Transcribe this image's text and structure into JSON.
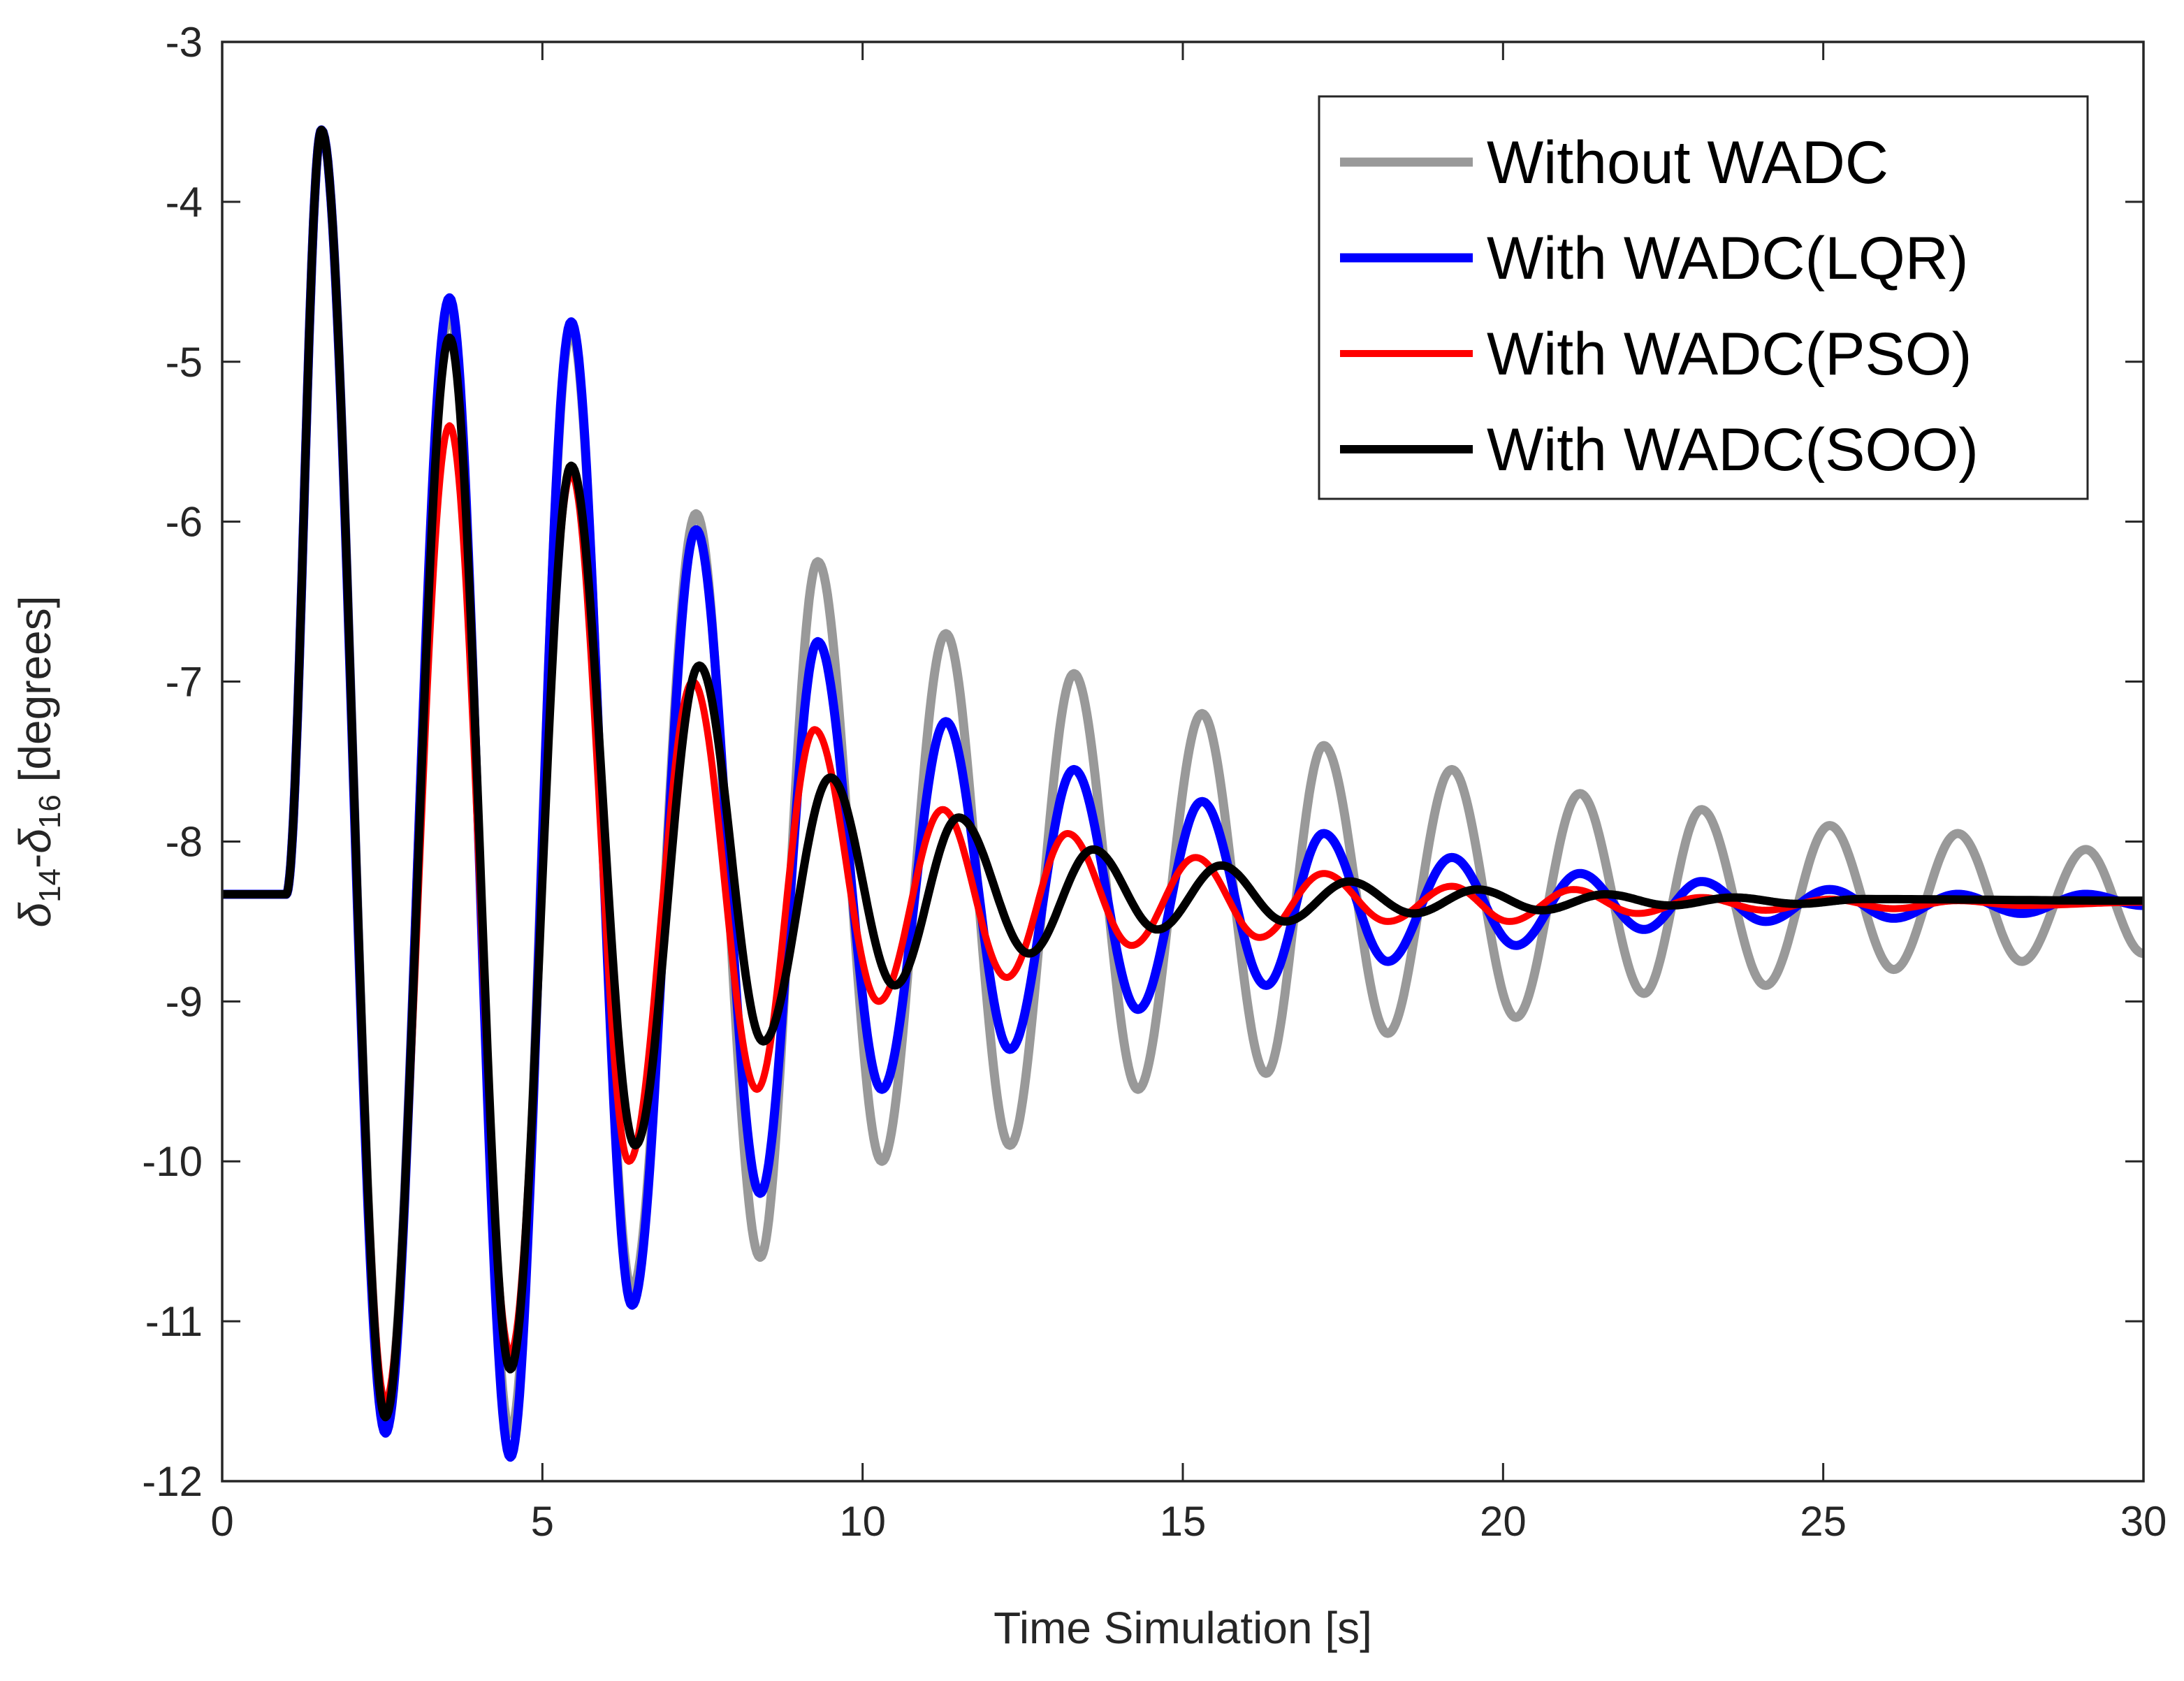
{
  "chart_data": {
    "type": "line",
    "title": "",
    "xlabel": "Time Simulation [s]",
    "ylabel": {
      "parts": [
        {
          "text": "δ",
          "style": "italic"
        },
        {
          "text": "14",
          "style": "sub"
        },
        {
          "text": "-",
          "style": "normal"
        },
        {
          "text": "δ",
          "style": "italic"
        },
        {
          "text": "16",
          "style": "sub"
        },
        {
          "text": " [degrees]",
          "style": "normal"
        }
      ]
    },
    "xlim": [
      0,
      30
    ],
    "ylim": [
      -12,
      -3
    ],
    "xticks": [
      0,
      5,
      10,
      15,
      20,
      25,
      30
    ],
    "xtick_labels": [
      "0",
      "5",
      "10",
      "15",
      "20",
      "25",
      "30"
    ],
    "yticks": [
      -3,
      -4,
      -5,
      -6,
      -7,
      -8,
      -9,
      -10,
      -11,
      -12
    ],
    "ytick_labels": [
      "-3",
      "-4",
      "-5",
      "-6",
      "-7",
      "-8",
      "-9",
      "-10",
      "-11",
      "-12"
    ],
    "grid": false,
    "legend_position": "top-right",
    "baseline": -8.33,
    "disturbance_time": 1.0,
    "series": [
      {
        "name": "Without WADC",
        "color": "#999999",
        "extrema": [
          [
            1.0,
            -8.33
          ],
          [
            1.55,
            -3.55
          ],
          [
            2.55,
            -11.6
          ],
          [
            3.55,
            -4.7
          ],
          [
            4.5,
            -11.7
          ],
          [
            5.45,
            -4.8
          ],
          [
            6.4,
            -10.8
          ],
          [
            7.4,
            -5.95
          ],
          [
            8.4,
            -10.6
          ],
          [
            9.3,
            -6.25
          ],
          [
            10.3,
            -10.0
          ],
          [
            11.3,
            -6.7
          ],
          [
            12.3,
            -9.9
          ],
          [
            13.3,
            -6.95
          ],
          [
            14.3,
            -9.55
          ],
          [
            15.3,
            -7.2
          ],
          [
            16.3,
            -9.45
          ],
          [
            17.2,
            -7.4
          ],
          [
            18.2,
            -9.2
          ],
          [
            19.2,
            -7.55
          ],
          [
            20.2,
            -9.1
          ],
          [
            21.2,
            -7.7
          ],
          [
            22.2,
            -8.95
          ],
          [
            23.1,
            -7.8
          ],
          [
            24.1,
            -8.9
          ],
          [
            25.1,
            -7.9
          ],
          [
            26.1,
            -8.8
          ],
          [
            27.1,
            -7.95
          ],
          [
            28.1,
            -8.75
          ],
          [
            29.1,
            -8.05
          ],
          [
            30.0,
            -8.7
          ]
        ]
      },
      {
        "name": "With WADC(LQR)",
        "color": "#0000ff",
        "extrema": [
          [
            1.0,
            -8.33
          ],
          [
            1.55,
            -3.55
          ],
          [
            2.55,
            -11.7
          ],
          [
            3.55,
            -4.6
          ],
          [
            4.5,
            -11.85
          ],
          [
            5.45,
            -4.75
          ],
          [
            6.4,
            -10.9
          ],
          [
            7.4,
            -6.05
          ],
          [
            8.4,
            -10.2
          ],
          [
            9.3,
            -6.75
          ],
          [
            10.3,
            -9.55
          ],
          [
            11.3,
            -7.25
          ],
          [
            12.3,
            -9.3
          ],
          [
            13.3,
            -7.55
          ],
          [
            14.3,
            -9.05
          ],
          [
            15.3,
            -7.75
          ],
          [
            16.3,
            -8.9
          ],
          [
            17.2,
            -7.95
          ],
          [
            18.2,
            -8.75
          ],
          [
            19.2,
            -8.1
          ],
          [
            20.2,
            -8.65
          ],
          [
            21.2,
            -8.2
          ],
          [
            22.2,
            -8.55
          ],
          [
            23.1,
            -8.25
          ],
          [
            24.1,
            -8.5
          ],
          [
            25.1,
            -8.3
          ],
          [
            26.1,
            -8.48
          ],
          [
            27.1,
            -8.33
          ],
          [
            28.1,
            -8.45
          ],
          [
            29.1,
            -8.33
          ],
          [
            30.0,
            -8.4
          ]
        ]
      },
      {
        "name": "With WADC(PSO)",
        "color": "#ff0000",
        "extrema": [
          [
            1.0,
            -8.33
          ],
          [
            1.55,
            -3.55
          ],
          [
            2.55,
            -11.5
          ],
          [
            3.55,
            -5.4
          ],
          [
            4.5,
            -11.2
          ],
          [
            5.45,
            -5.7
          ],
          [
            6.35,
            -10.0
          ],
          [
            7.35,
            -7.0
          ],
          [
            8.35,
            -9.55
          ],
          [
            9.25,
            -7.3
          ],
          [
            10.25,
            -9.0
          ],
          [
            11.25,
            -7.8
          ],
          [
            12.25,
            -8.85
          ],
          [
            13.2,
            -7.95
          ],
          [
            14.2,
            -8.65
          ],
          [
            15.2,
            -8.1
          ],
          [
            16.2,
            -8.6
          ],
          [
            17.2,
            -8.2
          ],
          [
            18.2,
            -8.5
          ],
          [
            19.2,
            -8.28
          ],
          [
            20.1,
            -8.5
          ],
          [
            21.1,
            -8.3
          ],
          [
            22.1,
            -8.45
          ],
          [
            23.1,
            -8.35
          ],
          [
            24.1,
            -8.43
          ],
          [
            25.1,
            -8.36
          ],
          [
            26.1,
            -8.42
          ],
          [
            27.1,
            -8.37
          ],
          [
            28.1,
            -8.4
          ],
          [
            30.0,
            -8.38
          ]
        ]
      },
      {
        "name": "With WADC(SOO)",
        "color": "#000000",
        "extrema": [
          [
            1.0,
            -8.33
          ],
          [
            1.55,
            -3.55
          ],
          [
            2.55,
            -11.6
          ],
          [
            3.55,
            -4.85
          ],
          [
            4.5,
            -11.3
          ],
          [
            5.45,
            -5.65
          ],
          [
            6.45,
            -9.9
          ],
          [
            7.45,
            -6.9
          ],
          [
            8.45,
            -9.25
          ],
          [
            9.5,
            -7.6
          ],
          [
            10.5,
            -8.9
          ],
          [
            11.5,
            -7.85
          ],
          [
            12.6,
            -8.7
          ],
          [
            13.6,
            -8.05
          ],
          [
            14.6,
            -8.55
          ],
          [
            15.6,
            -8.15
          ],
          [
            16.6,
            -8.5
          ],
          [
            17.6,
            -8.25
          ],
          [
            18.6,
            -8.45
          ],
          [
            19.6,
            -8.3
          ],
          [
            20.6,
            -8.43
          ],
          [
            21.6,
            -8.33
          ],
          [
            22.6,
            -8.4
          ],
          [
            23.6,
            -8.35
          ],
          [
            24.6,
            -8.39
          ],
          [
            25.6,
            -8.36
          ],
          [
            30.0,
            -8.37
          ]
        ]
      }
    ]
  }
}
